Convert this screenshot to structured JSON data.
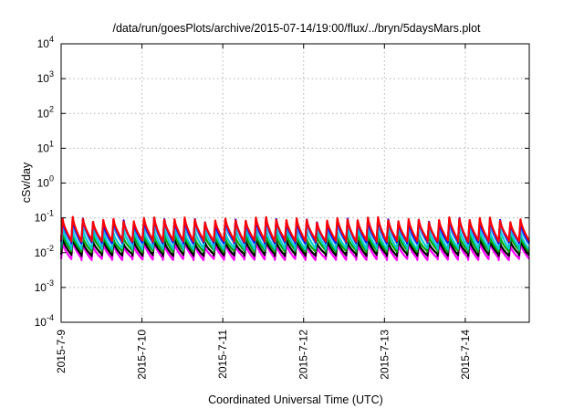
{
  "chart_data": {
    "type": "line",
    "title": "/data/run/goesPlots/archive/2015-07-14/19:00/flux/../bryn/5daysMars.plot",
    "xlabel": "Coordinated Universal Time (UTC)",
    "ylabel": "cSv/day",
    "yscale": "log",
    "ylim": [
      0.0001,
      10000
    ],
    "y_ticks": [
      {
        "base": "10",
        "exp": "4"
      },
      {
        "base": "10",
        "exp": "3"
      },
      {
        "base": "10",
        "exp": "2"
      },
      {
        "base": "10",
        "exp": "1"
      },
      {
        "base": "10",
        "exp": "0"
      },
      {
        "base": "10",
        "exp": "-1"
      },
      {
        "base": "10",
        "exp": "-2"
      },
      {
        "base": "10",
        "exp": "-3"
      },
      {
        "base": "10",
        "exp": "-4"
      }
    ],
    "xlim": [
      "2015-07-09",
      "2015-07-14 19:00"
    ],
    "x_ticks": [
      "2015-7-9",
      "2015-7-10",
      "2015-7-11",
      "2015-7-12",
      "2015-7-13",
      "2015-7-14"
    ],
    "grid": true,
    "approximate_pattern": {
      "oscillations_per_day": 8,
      "description": "Periodic sawtooth spikes; sharp rise then decay, repeating across the full time range."
    },
    "series": [
      {
        "color": "#ff0000",
        "peak": 0.09,
        "trough": 0.022
      },
      {
        "color": "#0000ff",
        "peak": 0.085,
        "trough": 0.02
      },
      {
        "color": "#3399ff",
        "peak": 0.07,
        "trough": 0.018
      },
      {
        "color": "#00cccc",
        "peak": 0.045,
        "trough": 0.013
      },
      {
        "color": "#00a000",
        "peak": 0.03,
        "trough": 0.011
      },
      {
        "color": "#000000",
        "peak": 0.022,
        "trough": 0.0085
      },
      {
        "color": "#ff00ff",
        "peak": 0.018,
        "trough": 0.0065
      }
    ]
  }
}
